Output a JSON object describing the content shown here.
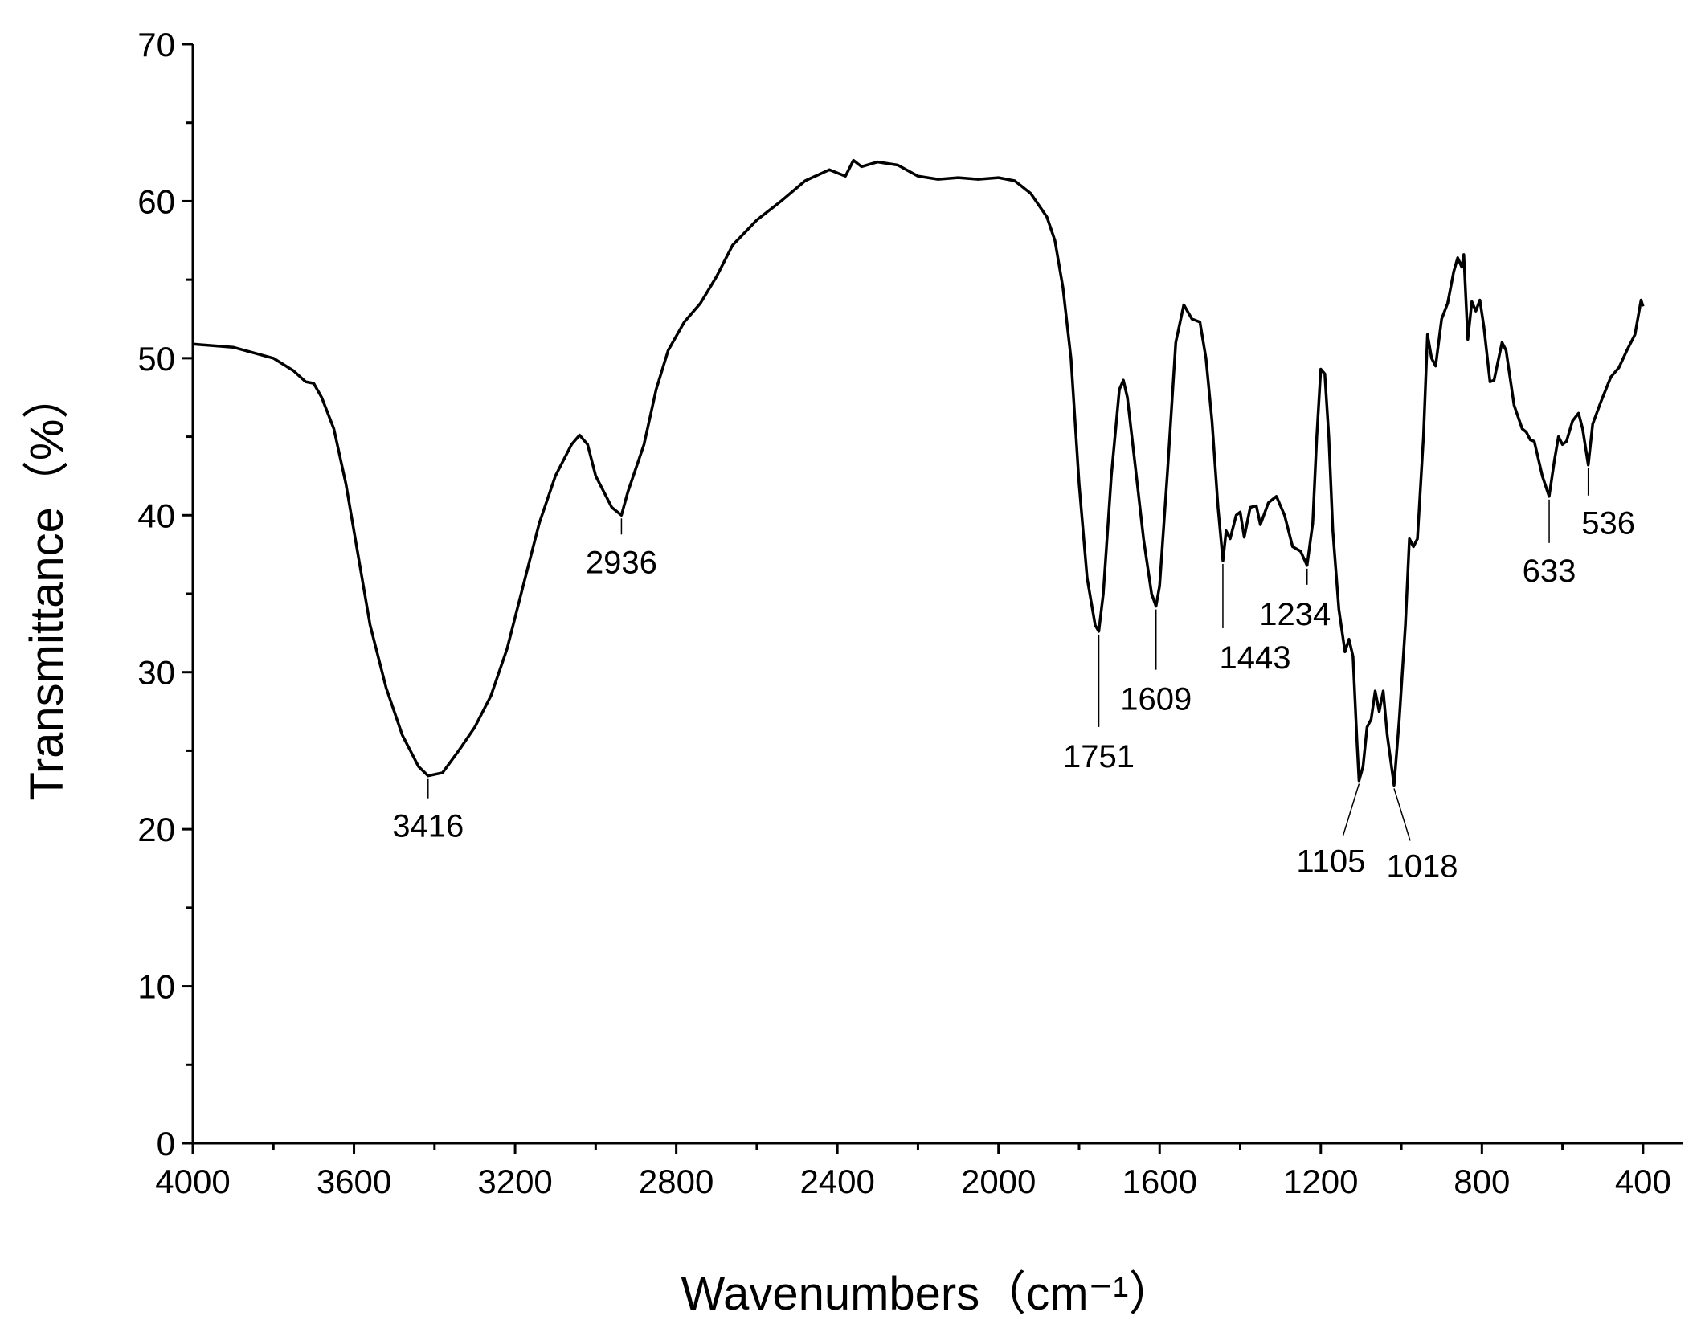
{
  "chart_data": {
    "type": "line",
    "xlabel": "Wavenumbers（cm⁻¹）",
    "ylabel": "Transmittance（%）",
    "color": "#000000",
    "xlim": [
      4000,
      300
    ],
    "ylim": [
      0,
      70
    ],
    "xticks": [
      4000,
      3600,
      3200,
      2800,
      2400,
      2000,
      1600,
      1200,
      800,
      400
    ],
    "yticks": [
      0,
      10,
      20,
      30,
      40,
      50,
      60,
      70
    ],
    "x": [
      4000,
      3900,
      3800,
      3750,
      3720,
      3700,
      3680,
      3650,
      3620,
      3600,
      3560,
      3520,
      3480,
      3440,
      3416,
      3380,
      3340,
      3300,
      3260,
      3220,
      3180,
      3140,
      3100,
      3060,
      3040,
      3020,
      3000,
      2960,
      2936,
      2920,
      2880,
      2850,
      2820,
      2780,
      2740,
      2700,
      2660,
      2600,
      2540,
      2480,
      2420,
      2380,
      2360,
      2340,
      2300,
      2250,
      2200,
      2150,
      2100,
      2050,
      2000,
      1960,
      1920,
      1880,
      1860,
      1840,
      1820,
      1800,
      1780,
      1760,
      1751,
      1740,
      1720,
      1700,
      1690,
      1680,
      1660,
      1640,
      1620,
      1609,
      1600,
      1580,
      1560,
      1540,
      1520,
      1500,
      1485,
      1470,
      1455,
      1443,
      1435,
      1425,
      1410,
      1400,
      1390,
      1375,
      1360,
      1350,
      1330,
      1310,
      1290,
      1270,
      1250,
      1234,
      1220,
      1210,
      1200,
      1190,
      1180,
      1170,
      1155,
      1140,
      1130,
      1120,
      1110,
      1105,
      1095,
      1085,
      1075,
      1065,
      1055,
      1045,
      1035,
      1018,
      1005,
      990,
      980,
      970,
      960,
      945,
      935,
      925,
      915,
      900,
      885,
      870,
      860,
      850,
      845,
      835,
      825,
      815,
      805,
      795,
      780,
      770,
      750,
      740,
      720,
      700,
      690,
      680,
      670,
      650,
      633,
      620,
      610,
      600,
      590,
      575,
      560,
      550,
      536,
      525,
      505,
      480,
      460,
      440,
      420,
      405,
      400
    ],
    "values": [
      50.9,
      50.7,
      50.0,
      49.2,
      48.5,
      48.4,
      47.5,
      45.5,
      42,
      39,
      33,
      29,
      26,
      24,
      23.4,
      23.6,
      25,
      26.5,
      28.5,
      31.5,
      35.5,
      39.5,
      42.5,
      44.5,
      45.1,
      44.5,
      42.5,
      40.5,
      40.0,
      41.5,
      44.5,
      48,
      50.5,
      52.3,
      53.5,
      55.2,
      57.2,
      58.8,
      60.0,
      61.3,
      62.0,
      61.6,
      62.6,
      62.2,
      62.5,
      62.3,
      61.6,
      61.4,
      61.5,
      61.4,
      61.5,
      61.3,
      60.5,
      59.0,
      57.5,
      54.5,
      50,
      42,
      36,
      33,
      32.6,
      35,
      42.5,
      48.0,
      48.6,
      47.5,
      43,
      38.5,
      35,
      34.2,
      35.5,
      43,
      51,
      53.4,
      52.5,
      52.3,
      50,
      46,
      40.5,
      37.1,
      39,
      38.5,
      40,
      40.2,
      38.6,
      40.5,
      40.6,
      39.4,
      40.8,
      41.2,
      40,
      38,
      37.7,
      36.8,
      39.5,
      45,
      49.3,
      49,
      45,
      39,
      34,
      31.3,
      32.1,
      31,
      25.5,
      23.1,
      24,
      26.5,
      27,
      28.8,
      27.5,
      28.8,
      26,
      22.8,
      27,
      33,
      38.5,
      38.0,
      38.5,
      45,
      51.5,
      50,
      49.5,
      52.5,
      53.5,
      55.5,
      56.4,
      55.8,
      56.6,
      51.2,
      53.6,
      53.0,
      53.7,
      52,
      48.5,
      48.6,
      51,
      50.5,
      47,
      45.5,
      45.3,
      44.8,
      44.7,
      42.5,
      41.2,
      43.5,
      45,
      44.5,
      44.7,
      46.0,
      46.5,
      45.5,
      43.2,
      45.8,
      47.2,
      48.8,
      49.4,
      50.5,
      51.5,
      53.7,
      53.3
    ],
    "annotations": [
      {
        "x": 3416,
        "y": 23.4
      },
      {
        "x": 2936,
        "y": 40.0
      },
      {
        "x": 1751,
        "y": 32.6
      },
      {
        "x": 1609,
        "y": 34.2
      },
      {
        "x": 1443,
        "y": 37.1
      },
      {
        "x": 1234,
        "y": 36.8
      },
      {
        "x": 1105,
        "y": 23.1
      },
      {
        "x": 1018,
        "y": 22.8
      },
      {
        "x": 633,
        "y": 41.2
      },
      {
        "x": 536,
        "y": 43.2
      }
    ]
  }
}
